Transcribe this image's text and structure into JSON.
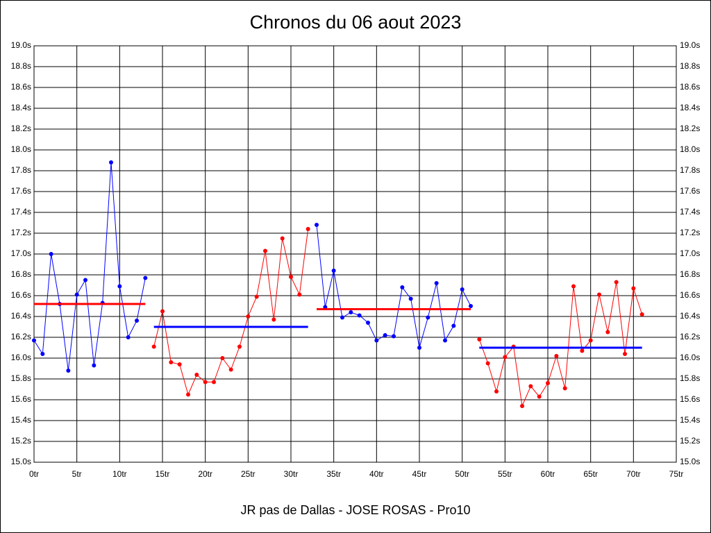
{
  "chart_data": {
    "type": "line",
    "title": "Chronos du 06 aout 2023",
    "x_label": "JR pas de Dallas - JOSE ROSAS - Pro10",
    "xlim": [
      0,
      75
    ],
    "ylim": [
      15.0,
      19.0
    ],
    "grid": true,
    "xticks": [
      {
        "value": 0,
        "label": "0tr"
      },
      {
        "value": 5,
        "label": "5tr"
      },
      {
        "value": 10,
        "label": "10tr"
      },
      {
        "value": 15,
        "label": "15tr"
      },
      {
        "value": 20,
        "label": "20tr"
      },
      {
        "value": 25,
        "label": "25tr"
      },
      {
        "value": 30,
        "label": "30tr"
      },
      {
        "value": 35,
        "label": "35tr"
      },
      {
        "value": 40,
        "label": "40tr"
      },
      {
        "value": 45,
        "label": "45tr"
      },
      {
        "value": 50,
        "label": "50tr"
      },
      {
        "value": 55,
        "label": "55tr"
      },
      {
        "value": 60,
        "label": "60tr"
      },
      {
        "value": 65,
        "label": "65tr"
      },
      {
        "value": 70,
        "label": "70tr"
      },
      {
        "value": 75,
        "label": "75tr"
      }
    ],
    "yticks": [
      {
        "value": 15.0,
        "label": "15.0s"
      },
      {
        "value": 15.2,
        "label": "15.2s"
      },
      {
        "value": 15.4,
        "label": "15.4s"
      },
      {
        "value": 15.6,
        "label": "15.6s"
      },
      {
        "value": 15.8,
        "label": "15.8s"
      },
      {
        "value": 16.0,
        "label": "16.0s"
      },
      {
        "value": 16.2,
        "label": "16.2s"
      },
      {
        "value": 16.4,
        "label": "16.4s"
      },
      {
        "value": 16.6,
        "label": "16.6s"
      },
      {
        "value": 16.8,
        "label": "16.8s"
      },
      {
        "value": 17.0,
        "label": "17.0s"
      },
      {
        "value": 17.2,
        "label": "17.2s"
      },
      {
        "value": 17.4,
        "label": "17.4s"
      },
      {
        "value": 17.6,
        "label": "17.6s"
      },
      {
        "value": 17.8,
        "label": "17.8s"
      },
      {
        "value": 18.0,
        "label": "18.0s"
      },
      {
        "value": 18.2,
        "label": "18.2s"
      },
      {
        "value": 18.4,
        "label": "18.4s"
      },
      {
        "value": 18.6,
        "label": "18.6s"
      },
      {
        "value": 18.8,
        "label": "18.8s"
      },
      {
        "value": 19.0,
        "label": "19.0s"
      }
    ],
    "series": [
      {
        "color": "#0000ff",
        "x": [
          0,
          1,
          2,
          3,
          4,
          5,
          6,
          7,
          8,
          9,
          10,
          11,
          12,
          13
        ],
        "values": [
          16.17,
          16.04,
          17.0,
          16.52,
          15.88,
          16.61,
          16.75,
          15.93,
          16.53,
          17.88,
          16.69,
          16.2,
          16.36,
          16.77
        ]
      },
      {
        "color": "#ff0000",
        "x": [
          14,
          15,
          16,
          17,
          18,
          19,
          20,
          21,
          22,
          23,
          24,
          25,
          26,
          27,
          28,
          29,
          30,
          31,
          32
        ],
        "values": [
          16.11,
          16.45,
          15.96,
          15.94,
          15.65,
          15.84,
          15.77,
          15.77,
          16.0,
          15.89,
          16.11,
          16.4,
          16.59,
          17.03,
          16.37,
          17.15,
          16.78,
          16.61,
          17.24
        ]
      },
      {
        "color": "#0000ff",
        "x": [
          33,
          34,
          35,
          36,
          37,
          38,
          39,
          40,
          41,
          42,
          43,
          44,
          45,
          46,
          47,
          48,
          49,
          50,
          51
        ],
        "values": [
          17.28,
          16.49,
          16.84,
          16.39,
          16.44,
          16.41,
          16.34,
          16.17,
          16.22,
          16.21,
          16.68,
          16.57,
          16.1,
          16.39,
          16.72,
          16.17,
          16.31,
          16.66,
          16.5
        ]
      },
      {
        "color": "#ff0000",
        "x": [
          52,
          53,
          54,
          55,
          56,
          57,
          58,
          59,
          60,
          61,
          62,
          63,
          64,
          65,
          66,
          67,
          68,
          69,
          70,
          71
        ],
        "values": [
          16.18,
          15.95,
          15.68,
          16.01,
          16.11,
          15.54,
          15.73,
          15.63,
          15.76,
          16.02,
          15.71,
          16.69,
          16.07,
          16.17,
          16.61,
          16.25,
          16.73,
          16.04,
          16.67,
          16.42
        ]
      }
    ],
    "averages": [
      {
        "color": "#ff0000",
        "x": [
          0,
          13
        ],
        "value": 16.52
      },
      {
        "color": "#0000ff",
        "x": [
          14,
          32
        ],
        "value": 16.3
      },
      {
        "color": "#ff0000",
        "x": [
          33,
          51
        ],
        "value": 16.47
      },
      {
        "color": "#0000ff",
        "x": [
          52,
          71
        ],
        "value": 16.1
      }
    ]
  }
}
